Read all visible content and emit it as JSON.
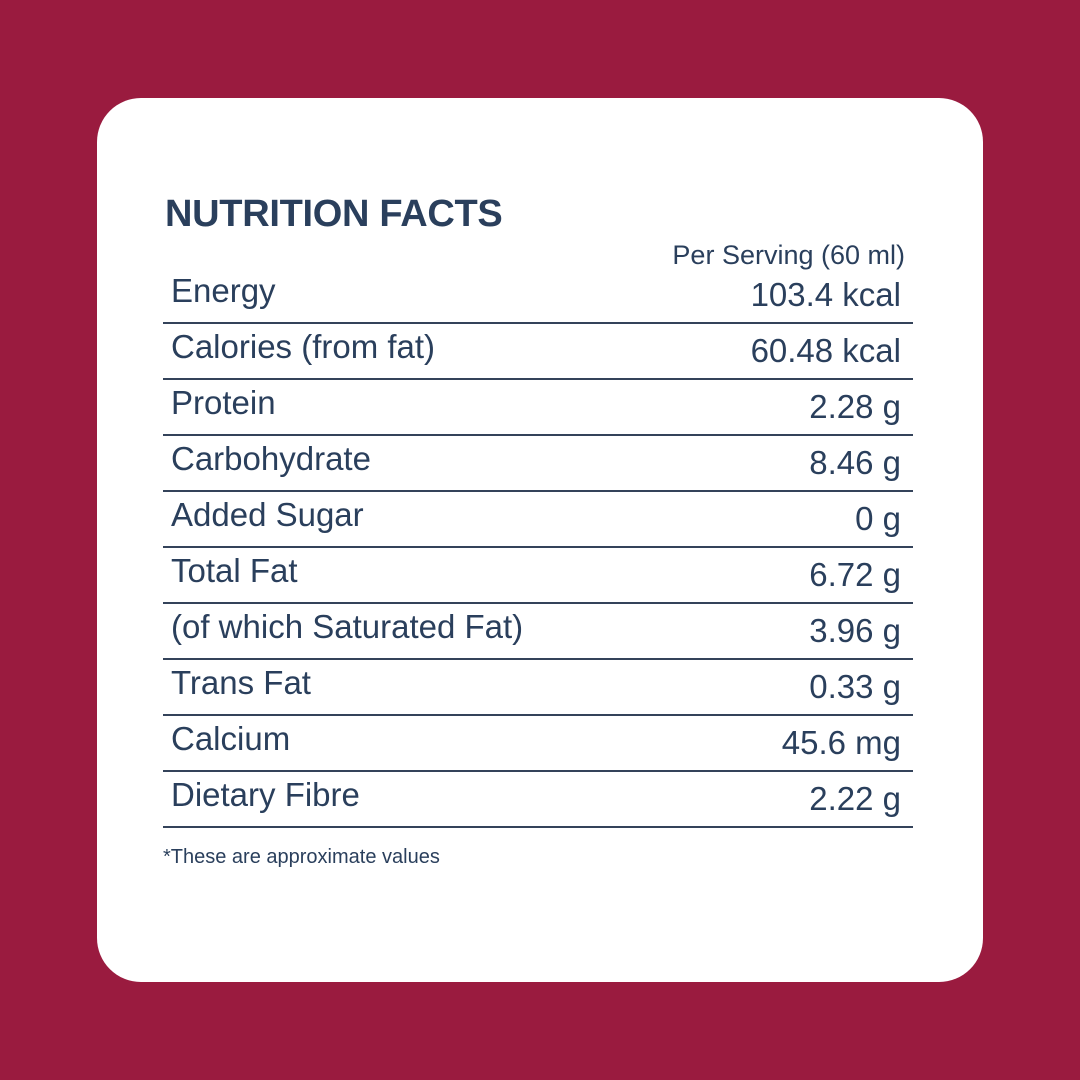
{
  "title": "NUTRITION FACTS",
  "serving_label": "Per Serving (60 ml)",
  "rows": [
    {
      "name": "Energy",
      "value": "103.4 kcal"
    },
    {
      "name": "Calories (from fat)",
      "value": "60.48 kcal"
    },
    {
      "name": "Protein",
      "value": "2.28 g"
    },
    {
      "name": "Carbohydrate",
      "value": "8.46 g"
    },
    {
      "name": "Added Sugar",
      "value": "0 g"
    },
    {
      "name": "Total Fat",
      "value": "6.72 g"
    },
    {
      "name": "(of which Saturated Fat)",
      "value": "3.96 g"
    },
    {
      "name": "Trans Fat",
      "value": "0.33 g"
    },
    {
      "name": "Calcium",
      "value": "45.6 mg"
    },
    {
      "name": "Dietary Fibre",
      "value": "2.22 g"
    }
  ],
  "footnote": "*These are approximate values",
  "colors": {
    "background": "#9a1b3f",
    "card": "#ffffff",
    "text": "#2a3f5c",
    "rule": "#34435a"
  }
}
